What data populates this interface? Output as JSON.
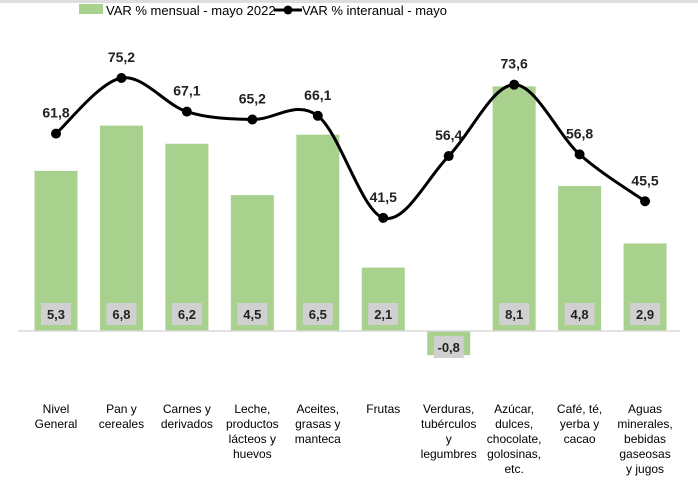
{
  "chart_data": {
    "type": "bar+line",
    "categories": [
      "Nivel General",
      "Pan y cereales",
      "Carnes y derivados",
      "Leche, productos lácteos y huevos",
      "Aceites, grasas y manteca",
      "Frutas",
      "Verduras, tubérculos y legumbres",
      "Azúcar, dulces, chocolate, golosinas, etc.",
      "Café, té, yerba y cacao",
      "Aguas minerales, bebidas gaseosas y jugos"
    ],
    "category_lines": [
      [
        "Nivel",
        "General"
      ],
      [
        "Pan y",
        "cereales"
      ],
      [
        "Carnes y",
        "derivados"
      ],
      [
        "Leche,",
        "productos",
        "lácteos y",
        "huevos"
      ],
      [
        "Aceites,",
        "grasas y",
        "manteca"
      ],
      [
        "Frutas"
      ],
      [
        "Verduras,",
        "tubérculos",
        "y",
        "legumbres"
      ],
      [
        "Azúcar,",
        "dulces,",
        "chocolate,",
        "golosinas,",
        "etc."
      ],
      [
        "Café, té,",
        "yerba y",
        "cacao"
      ],
      [
        "Aguas",
        "minerales,",
        "bebidas",
        "gaseosas",
        "y jugos"
      ]
    ],
    "series": [
      {
        "name": "VAR % mensual - mayo 2022",
        "kind": "bar",
        "color": "#a9d18e",
        "values": [
          5.3,
          6.8,
          6.2,
          4.5,
          6.5,
          2.1,
          -0.8,
          8.1,
          4.8,
          2.9
        ],
        "labels": [
          "5,3",
          "6,8",
          "6,2",
          "4,5",
          "6,5",
          "2,1",
          "-0,8",
          "8,1",
          "4,8",
          "2,9"
        ]
      },
      {
        "name": "VAR % interanual - mayo",
        "kind": "line",
        "color": "#000000",
        "values": [
          61.8,
          75.2,
          67.1,
          65.2,
          66.1,
          41.5,
          56.4,
          73.6,
          56.8,
          45.5
        ],
        "labels": [
          "61,8",
          "75,2",
          "67,1",
          "65,2",
          "66,1",
          "41,5",
          "56,4",
          "73,6",
          "56,8",
          "45,5"
        ]
      }
    ],
    "legend_position": "top",
    "grid": false
  }
}
